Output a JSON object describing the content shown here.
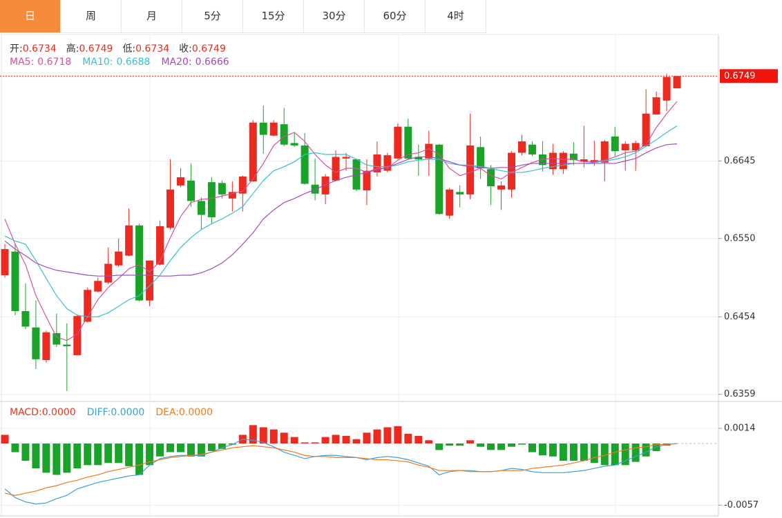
{
  "tabs": {
    "items": [
      "日",
      "周",
      "月",
      "5分",
      "15分",
      "30分",
      "60分",
      "4时"
    ],
    "active": 0
  },
  "chart_data": [
    {
      "type": "candlestick",
      "up_color": "#ec2a1f",
      "down_color": "#1aa329",
      "ohlc_labels": [
        "开:",
        "高:",
        "低:",
        "收:"
      ],
      "open": [
        0.6505,
        0.6534,
        0.6461,
        0.6441,
        0.6401,
        0.6434,
        0.642,
        0.6407,
        0.6448,
        0.6485,
        0.6496,
        0.6517,
        0.6529,
        0.6566,
        0.6474,
        0.6518,
        0.6563,
        0.6615,
        0.6621,
        0.6596,
        0.6619,
        0.6618,
        0.6599,
        0.6605,
        0.662,
        0.6692,
        0.6676,
        0.669,
        0.6667,
        0.6664,
        0.6616,
        0.6604,
        0.6621,
        0.6648,
        0.6647,
        0.6609,
        0.6631,
        0.6633,
        0.6648,
        0.6687,
        0.665,
        0.6648,
        0.6665,
        0.6578,
        0.6607,
        0.6604,
        0.6662,
        0.6635,
        0.661,
        0.661,
        0.6655,
        0.6665,
        0.6653,
        0.6635,
        0.6635,
        0.6654,
        0.6644,
        0.6643,
        0.6643,
        0.6675,
        0.6658,
        0.6658,
        0.6663,
        0.6702,
        0.6719,
        0.6734
      ],
      "high": [
        0.6543,
        0.6543,
        0.6495,
        0.6474,
        0.6437,
        0.6458,
        0.6446,
        0.6457,
        0.649,
        0.6502,
        0.6539,
        0.655,
        0.6587,
        0.6568,
        0.6523,
        0.6572,
        0.6647,
        0.6636,
        0.6642,
        0.66,
        0.6625,
        0.6621,
        0.662,
        0.6627,
        0.6695,
        0.6713,
        0.6695,
        0.671,
        0.668,
        0.6679,
        0.6648,
        0.6629,
        0.6658,
        0.6655,
        0.6648,
        0.6647,
        0.6669,
        0.6655,
        0.6691,
        0.6697,
        0.6665,
        0.6682,
        0.6666,
        0.6612,
        0.6615,
        0.6703,
        0.6675,
        0.664,
        0.662,
        0.6657,
        0.6677,
        0.6669,
        0.6669,
        0.6666,
        0.6657,
        0.6668,
        0.6688,
        0.667,
        0.6671,
        0.6687,
        0.6669,
        0.667,
        0.6733,
        0.673,
        0.6752,
        0.6749
      ],
      "low": [
        0.6502,
        0.6456,
        0.6439,
        0.639,
        0.6398,
        0.6417,
        0.6363,
        0.6407,
        0.6447,
        0.6484,
        0.6494,
        0.6515,
        0.6528,
        0.6473,
        0.6467,
        0.6517,
        0.6561,
        0.6613,
        0.6589,
        0.6561,
        0.6568,
        0.6599,
        0.6583,
        0.6583,
        0.662,
        0.6654,
        0.6675,
        0.6663,
        0.6662,
        0.6616,
        0.6597,
        0.6592,
        0.662,
        0.6633,
        0.6608,
        0.6591,
        0.6626,
        0.6631,
        0.6647,
        0.6647,
        0.6627,
        0.6627,
        0.6579,
        0.6574,
        0.6588,
        0.6598,
        0.6623,
        0.6591,
        0.6585,
        0.66,
        0.6652,
        0.6651,
        0.6632,
        0.6628,
        0.6629,
        0.664,
        0.6637,
        0.6639,
        0.662,
        0.6651,
        0.6633,
        0.6633,
        0.6662,
        0.6702,
        0.6706,
        0.6734
      ],
      "close": [
        0.6537,
        0.6461,
        0.6442,
        0.6402,
        0.6435,
        0.642,
        0.6418,
        0.6455,
        0.6487,
        0.6498,
        0.6519,
        0.6534,
        0.6566,
        0.6474,
        0.6523,
        0.6565,
        0.661,
        0.6625,
        0.6596,
        0.6579,
        0.6576,
        0.6604,
        0.6607,
        0.6626,
        0.6692,
        0.6677,
        0.6692,
        0.6665,
        0.6664,
        0.6617,
        0.6605,
        0.6626,
        0.665,
        0.665,
        0.661,
        0.6633,
        0.6653,
        0.6652,
        0.6687,
        0.6648,
        0.6647,
        0.6666,
        0.658,
        0.661,
        0.6604,
        0.6664,
        0.6636,
        0.6614,
        0.6615,
        0.6655,
        0.6669,
        0.6653,
        0.664,
        0.6655,
        0.6655,
        0.6646,
        0.6647,
        0.6646,
        0.6669,
        0.6657,
        0.6666,
        0.6667,
        0.6703,
        0.6723,
        0.6748,
        0.6749
      ],
      "series": [
        {
          "name": "MA5:",
          "color": "#d94f9b",
          "values": [
            0.6574,
            0.6543,
            0.6518,
            0.648,
            0.6454,
            0.6429,
            0.6425,
            0.6433,
            0.6454,
            0.6475,
            0.649,
            0.6501,
            0.6513,
            0.6518,
            0.6509,
            0.6522,
            0.6551,
            0.6577,
            0.6594,
            0.6598,
            0.6599,
            0.6602,
            0.6605,
            0.6608,
            0.6623,
            0.6642,
            0.6664,
            0.6675,
            0.668,
            0.6669,
            0.6653,
            0.664,
            0.6631,
            0.6636,
            0.6636,
            0.6631,
            0.6636,
            0.6636,
            0.6646,
            0.6653,
            0.6655,
            0.666,
            0.6653,
            0.6636,
            0.6627,
            0.6631,
            0.6636,
            0.6627,
            0.6623,
            0.6631,
            0.6637,
            0.6643,
            0.6647,
            0.6648,
            0.6647,
            0.6647,
            0.6644,
            0.6644,
            0.6646,
            0.665,
            0.6655,
            0.6657,
            0.6665,
            0.6686,
            0.6703,
            0.6718
          ]
        },
        {
          "name": "MA10:",
          "color": "#36bfd3",
          "values": [
            0.6553,
            0.6547,
            0.6543,
            0.6523,
            0.6501,
            0.648,
            0.6464,
            0.6456,
            0.6454,
            0.6454,
            0.6459,
            0.6467,
            0.6475,
            0.648,
            0.6492,
            0.6505,
            0.6523,
            0.6539,
            0.6551,
            0.6561,
            0.6568,
            0.6574,
            0.6581,
            0.6589,
            0.6605,
            0.6621,
            0.6633,
            0.6638,
            0.6644,
            0.6653,
            0.6655,
            0.6653,
            0.6653,
            0.6653,
            0.6647,
            0.664,
            0.6638,
            0.6638,
            0.664,
            0.6644,
            0.6646,
            0.6647,
            0.6647,
            0.6642,
            0.664,
            0.664,
            0.6638,
            0.6636,
            0.6633,
            0.6631,
            0.6631,
            0.6633,
            0.6636,
            0.6638,
            0.664,
            0.6642,
            0.6642,
            0.6643,
            0.6645,
            0.6647,
            0.665,
            0.6655,
            0.6663,
            0.6671,
            0.668,
            0.6688
          ]
        },
        {
          "name": "MA20:",
          "color": "#a34ac6",
          "values": [
            0.6547,
            0.6537,
            0.6529,
            0.652,
            0.6515,
            0.6511,
            0.6509,
            0.6507,
            0.6505,
            0.6504,
            0.6504,
            0.6505,
            0.6505,
            0.6505,
            0.6505,
            0.6504,
            0.6504,
            0.6505,
            0.6505,
            0.6508,
            0.6513,
            0.652,
            0.653,
            0.6543,
            0.6557,
            0.6574,
            0.6585,
            0.6594,
            0.6599,
            0.6605,
            0.661,
            0.6616,
            0.6621,
            0.6625,
            0.6628,
            0.6631,
            0.6634,
            0.6637,
            0.6642,
            0.6647,
            0.665,
            0.665,
            0.6648,
            0.6644,
            0.664,
            0.6638,
            0.6637,
            0.6636,
            0.6637,
            0.6637,
            0.664,
            0.6642,
            0.6642,
            0.6642,
            0.6642,
            0.6642,
            0.6642,
            0.6642,
            0.6642,
            0.6642,
            0.6645,
            0.6648,
            0.6655,
            0.6661,
            0.6665,
            0.6666
          ]
        }
      ],
      "last_price": 0.6749,
      "ylim": [
        0.6352,
        0.68
      ],
      "yticks": [
        0.6359,
        0.6454,
        {
          "value": 0.655,
          "label": "0.6550"
        },
        0.6645
      ],
      "grid": true
    },
    {
      "type": "macd",
      "series": [
        {
          "name": "MACD:",
          "type": "bar",
          "color": "#e8361e",
          "up_color": "#ec2a1f",
          "down_color": "#1aa329",
          "last_label": "0.0000",
          "values": [
            0.0008,
            -0.0008,
            -0.0016,
            -0.0023,
            -0.0027,
            -0.0029,
            -0.0027,
            -0.0023,
            -0.002,
            -0.002,
            -0.0018,
            -0.0018,
            -0.0021,
            -0.0029,
            -0.002,
            -0.0012,
            -0.0008,
            -0.0008,
            -0.0012,
            -0.0012,
            -0.0007,
            -0.0005,
            -0.0001,
            0.0008,
            0.0017,
            0.0015,
            0.0013,
            0.001,
            0.0006,
            0.0001,
            0.0001,
            0.0006,
            0.0008,
            0.0007,
            0.0004,
            0.001,
            0.0013,
            0.0015,
            0.0016,
            0.0009,
            0.0007,
            0.0003,
            -0.0006,
            -0.0002,
            -0.0002,
            0.0003,
            -0.0003,
            -0.0006,
            -0.0006,
            -0.0003,
            -0.0001,
            -0.0008,
            -0.0011,
            -0.0012,
            -0.0016,
            -0.0016,
            -0.0016,
            -0.0018,
            -0.002,
            -0.002,
            -0.002,
            -0.0017,
            -0.0012,
            -0.0007,
            -0.0002,
            0
          ]
        },
        {
          "name": "DIFF:",
          "type": "line",
          "color": "#3d9fd9",
          "last_label": "0.0000",
          "values": [
            -0.0042,
            -0.005,
            -0.0054,
            -0.0056,
            -0.0055,
            -0.0051,
            -0.0048,
            -0.0042,
            -0.0039,
            -0.0036,
            -0.0034,
            -0.0032,
            -0.003,
            -0.0029,
            -0.002,
            -0.0014,
            -0.0012,
            -0.0011,
            -0.0011,
            -0.0011,
            -0.0008,
            -0.0004,
            -0.0001,
            0.0004,
            0.0003,
            0.0001,
            -0.0003,
            -0.0008,
            -0.0011,
            -0.0014,
            -0.0012,
            -0.0011,
            -0.0011,
            -0.0012,
            -0.0013,
            -0.0015,
            -0.0013,
            -0.0012,
            -0.0013,
            -0.0015,
            -0.0018,
            -0.0021,
            -0.0029,
            -0.0026,
            -0.0025,
            -0.0025,
            -0.0026,
            -0.0026,
            -0.0025,
            -0.0023,
            -0.0024,
            -0.0026,
            -0.0027,
            -0.0027,
            -0.0027,
            -0.0026,
            -0.0025,
            -0.0023,
            -0.0021,
            -0.002,
            -0.0016,
            -0.0012,
            -0.0008,
            -0.0003,
            -0.0001,
            0
          ]
        },
        {
          "name": "DEA:",
          "type": "line",
          "color": "#f07a1c",
          "last_label": "0.0000",
          "values": [
            -0.0046,
            -0.0048,
            -0.0046,
            -0.0044,
            -0.0041,
            -0.0039,
            -0.0036,
            -0.0034,
            -0.0031,
            -0.0029,
            -0.0026,
            -0.0024,
            -0.0022,
            -0.002,
            -0.0017,
            -0.0015,
            -0.0013,
            -0.0012,
            -0.0011,
            -0.001,
            -0.0008,
            -0.0006,
            -0.0004,
            -0.0003,
            -0.0002,
            -0.0003,
            -0.0004,
            -0.0006,
            -0.0008,
            -0.0011,
            -0.0012,
            -0.0012,
            -0.0013,
            -0.0013,
            -0.0013,
            -0.0014,
            -0.0015,
            -0.0015,
            -0.0016,
            -0.0017,
            -0.002,
            -0.0022,
            -0.0025,
            -0.0025,
            -0.0025,
            -0.0026,
            -0.0026,
            -0.0026,
            -0.0025,
            -0.0025,
            -0.0025,
            -0.0023,
            -0.0022,
            -0.0021,
            -0.002,
            -0.0018,
            -0.0016,
            -0.0013,
            -0.0011,
            -0.0008,
            -0.0006,
            -0.0004,
            -0.0003,
            -0.0001,
            -0.0001,
            0
          ]
        }
      ],
      "ylim": [
        -0.0067,
        0.0037
      ],
      "yticks": [
        0.0014,
        -0.0057
      ],
      "grid": true
    }
  ]
}
